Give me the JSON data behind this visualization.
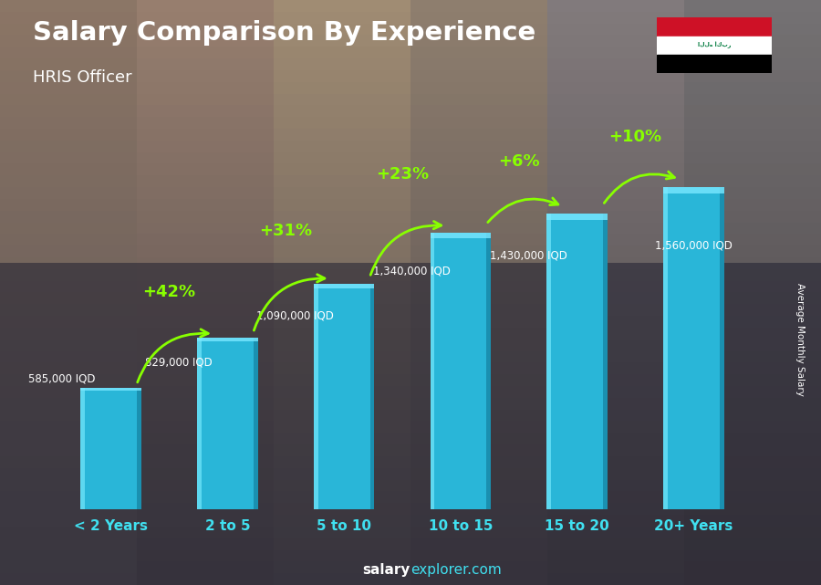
{
  "title": "Salary Comparison By Experience",
  "subtitle": "HRIS Officer",
  "categories": [
    "< 2 Years",
    "2 to 5",
    "5 to 10",
    "10 to 15",
    "15 to 20",
    "20+ Years"
  ],
  "values": [
    585000,
    829000,
    1090000,
    1340000,
    1430000,
    1560000
  ],
  "labels": [
    "585,000 IQD",
    "829,000 IQD",
    "1,090,000 IQD",
    "1,340,000 IQD",
    "1,430,000 IQD",
    "1,560,000 IQD"
  ],
  "pct_texts": [
    "+42%",
    "+31%",
    "+23%",
    "+6%",
    "+10%"
  ],
  "bar_color": "#29b6d8",
  "bar_left_highlight": "#5dd8f0",
  "bar_right_shadow": "#1a90b0",
  "bar_top_highlight": "#7ae8ff",
  "bg_color": "#6b5a4e",
  "title_color": "#ffffff",
  "subtitle_color": "#ffffff",
  "label_color": "#ffffff",
  "tick_color": "#40e0f0",
  "pct_color": "#88ff00",
  "arrow_color": "#88ff00",
  "ylabel": "Average Monthly Salary",
  "ylim_max": 1900000,
  "bar_width": 0.52,
  "footer_salary_color": "#ffffff",
  "footer_explorer_color": "#40e0f0"
}
